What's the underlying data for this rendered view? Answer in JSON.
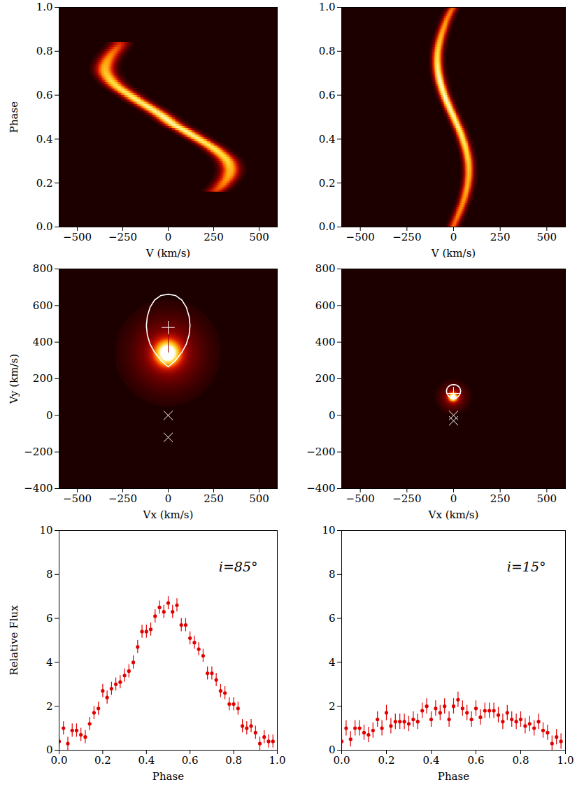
{
  "chart_data": [
    {
      "type": "heatmap",
      "x_label": "V (km/s)",
      "y_label": "Phase",
      "xlim": [
        -600,
        600
      ],
      "xticks": [
        -500,
        -250,
        0,
        250,
        500
      ],
      "ylim": [
        0,
        1
      ],
      "yticks": [
        {
          "value": 0,
          "label": "0.0"
        },
        {
          "value": 0.2,
          "label": "0.2"
        },
        {
          "value": 0.4,
          "label": "0.4"
        },
        {
          "value": 0.6,
          "label": "0.6"
        },
        {
          "value": 0.8,
          "label": "0.8"
        },
        {
          "value": 1,
          "label": "1.0"
        }
      ],
      "track": {
        "width": 35,
        "phase": [
          0.16,
          0.18,
          0.2,
          0.22,
          0.24,
          0.26,
          0.28,
          0.3,
          0.32,
          0.34,
          0.36,
          0.38,
          0.4,
          0.42,
          0.44,
          0.46,
          0.48,
          0.5,
          0.52,
          0.54,
          0.56,
          0.58,
          0.6,
          0.62,
          0.64,
          0.66,
          0.68,
          0.7,
          0.72,
          0.74,
          0.76,
          0.78,
          0.8,
          0.82,
          0.84
        ],
        "velocity": [
          260,
          290,
          310,
          330,
          340,
          345,
          340,
          330,
          310,
          280,
          250,
          210,
          170,
          130,
          90,
          45,
          10,
          -20,
          -55,
          -95,
          -135,
          -175,
          -210,
          -245,
          -280,
          -305,
          -325,
          -340,
          -345,
          -340,
          -330,
          -315,
          -295,
          -275,
          -260
        ],
        "intensity": [
          0.45,
          0.55,
          0.6,
          0.65,
          0.7,
          0.72,
          0.75,
          0.78,
          0.8,
          0.82,
          0.85,
          0.85,
          0.88,
          0.9,
          0.9,
          0.92,
          0.92,
          0.92,
          0.9,
          0.9,
          0.88,
          0.88,
          0.85,
          0.85,
          0.82,
          0.8,
          0.78,
          0.75,
          0.72,
          0.7,
          0.65,
          0.6,
          0.55,
          0.5,
          0.4
        ]
      }
    },
    {
      "type": "heatmap",
      "x_label": "V (km/s)",
      "xlim": [
        -600,
        600
      ],
      "xticks": [
        -500,
        -250,
        0,
        250,
        500
      ],
      "ylim": [
        0,
        1
      ],
      "yticks": [
        {
          "value": 0,
          "label": "0.0"
        },
        {
          "value": 0.2,
          "label": "0.2"
        },
        {
          "value": 0.4,
          "label": "0.4"
        },
        {
          "value": 0.6,
          "label": "0.6"
        },
        {
          "value": 0.8,
          "label": "0.8"
        },
        {
          "value": 1,
          "label": "1.0"
        }
      ],
      "track": {
        "width": 18,
        "phase": [
          0,
          0.02,
          0.04,
          0.06,
          0.08,
          0.1,
          0.12,
          0.14,
          0.16,
          0.18,
          0.2,
          0.22,
          0.24,
          0.26,
          0.28,
          0.3,
          0.32,
          0.34,
          0.36,
          0.38,
          0.4,
          0.42,
          0.44,
          0.46,
          0.48,
          0.5,
          0.52,
          0.54,
          0.56,
          0.58,
          0.6,
          0.62,
          0.64,
          0.66,
          0.68,
          0.7,
          0.72,
          0.74,
          0.76,
          0.78,
          0.8,
          0.82,
          0.84,
          0.86,
          0.88,
          0.9,
          0.92,
          0.94,
          0.96,
          0.98,
          1.0
        ],
        "velocity": [
          0,
          11,
          21,
          31,
          40,
          49,
          57,
          64,
          70,
          76,
          80,
          83,
          85,
          85,
          84,
          82,
          78,
          73,
          67,
          60,
          52,
          44,
          35,
          25,
          14,
          4,
          -7,
          -18,
          -28,
          -38,
          -47,
          -55,
          -62,
          -69,
          -74,
          -79,
          -82,
          -84,
          -85,
          -84,
          -82,
          -78,
          -73,
          -67,
          -60,
          -52,
          -44,
          -35,
          -25,
          -14,
          0
        ],
        "intensity": [
          0.55,
          0.55,
          0.58,
          0.6,
          0.62,
          0.62,
          0.65,
          0.65,
          0.68,
          0.7,
          0.7,
          0.72,
          0.72,
          0.75,
          0.75,
          0.78,
          0.8,
          0.8,
          0.82,
          0.85,
          0.85,
          0.88,
          0.88,
          0.9,
          0.9,
          0.92,
          0.92,
          0.95,
          0.95,
          0.95,
          0.95,
          0.95,
          0.95,
          0.95,
          0.95,
          0.92,
          0.9,
          0.88,
          0.85,
          0.82,
          0.8,
          0.78,
          0.75,
          0.72,
          0.7,
          0.68,
          0.65,
          0.62,
          0.6,
          0.58,
          0.55
        ]
      }
    },
    {
      "type": "doppler",
      "x_label": "Vx (km/s)",
      "y_label": "Vy (km/s)",
      "xlim": [
        -600,
        600
      ],
      "xticks": [
        -500,
        -250,
        0,
        250,
        500
      ],
      "ylim": [
        -400,
        800
      ],
      "yticks": [
        -400,
        -200,
        0,
        200,
        400,
        600,
        800
      ],
      "spot": {
        "vx": 0,
        "vy": 340,
        "width": 45
      },
      "lobe": {
        "vx": [
          0,
          40,
          75,
          100,
          115,
          120,
          115,
          100,
          75,
          40,
          0,
          -40,
          -75,
          -100,
          -115,
          -120,
          -115,
          -100,
          -75,
          -40
        ],
        "vy": [
          265,
          300,
          345,
          390,
          440,
          490,
          540,
          590,
          630,
          655,
          662,
          655,
          630,
          590,
          540,
          490,
          440,
          390,
          345,
          300
        ]
      },
      "stream": {
        "vx": [
          0,
          0
        ],
        "vy": [
          480,
          345
        ]
      },
      "plus": {
        "vx": [
          0
        ],
        "vy": [
          480
        ]
      },
      "crosses": {
        "vx": [
          0,
          0
        ],
        "vy": [
          0,
          -120
        ]
      }
    },
    {
      "type": "doppler",
      "x_label": "Vx (km/s)",
      "xlim": [
        -600,
        600
      ],
      "xticks": [
        -500,
        -250,
        0,
        250,
        500
      ],
      "ylim": [
        -400,
        800
      ],
      "yticks": [
        -400,
        -200,
        0,
        200,
        400,
        600,
        800
      ],
      "spot": {
        "vx": 0,
        "vy": 100,
        "width": 15
      },
      "lobe": {
        "vx": [
          0,
          15,
          28,
          36,
          38,
          35,
          27,
          14,
          0,
          -14,
          -27,
          -35,
          -38,
          -36,
          -28,
          -15
        ],
        "vy": [
          88,
          95,
          107,
          120,
          133,
          147,
          158,
          166,
          168,
          166,
          158,
          147,
          133,
          120,
          107,
          95
        ]
      },
      "plus": {
        "vx": [
          0
        ],
        "vy": [
          120
        ]
      },
      "crosses": {
        "vx": [
          0,
          0
        ],
        "vy": [
          0,
          -30
        ]
      }
    },
    {
      "type": "scatter",
      "x_label": "Phase",
      "y_label": "Relative Flux",
      "annotation": "i=85°",
      "color": "#e00000",
      "xlim": [
        0,
        1
      ],
      "xticks": [
        {
          "value": 0,
          "label": "0.0"
        },
        {
          "value": 0.2,
          "label": "0.2"
        },
        {
          "value": 0.4,
          "label": "0.4"
        },
        {
          "value": 0.6,
          "label": "0.6"
        },
        {
          "value": 0.8,
          "label": "0.8"
        },
        {
          "value": 1,
          "label": "1.0"
        }
      ],
      "ylim": [
        0,
        10
      ],
      "yticks": [
        0,
        2,
        4,
        6,
        8,
        10
      ],
      "x": [
        0,
        0.02,
        0.04,
        0.06,
        0.08,
        0.1,
        0.12,
        0.14,
        0.16,
        0.18,
        0.2,
        0.22,
        0.24,
        0.26,
        0.28,
        0.3,
        0.32,
        0.34,
        0.36,
        0.38,
        0.4,
        0.42,
        0.44,
        0.46,
        0.48,
        0.5,
        0.52,
        0.54,
        0.56,
        0.58,
        0.6,
        0.62,
        0.64,
        0.66,
        0.68,
        0.7,
        0.72,
        0.74,
        0.76,
        0.78,
        0.8,
        0.82,
        0.84,
        0.86,
        0.88,
        0.9,
        0.92,
        0.94,
        0.96,
        0.98
      ],
      "values": [
        0.4,
        1.0,
        0.3,
        0.9,
        0.9,
        0.7,
        0.6,
        1.2,
        1.7,
        1.9,
        2.7,
        2.4,
        2.8,
        3.0,
        3.1,
        3.4,
        3.6,
        4.0,
        4.7,
        5.4,
        5.4,
        5.5,
        6.1,
        6.5,
        6.3,
        6.7,
        6.3,
        6.6,
        5.7,
        5.7,
        5.1,
        4.9,
        4.6,
        4.3,
        3.5,
        3.5,
        3.2,
        2.7,
        2.6,
        2.1,
        2.1,
        1.9,
        1.1,
        1.0,
        1.1,
        0.8,
        0.3,
        0.6,
        0.4,
        0.4
      ],
      "errors": [
        0.3,
        0.3,
        0.3,
        0.3,
        0.3,
        0.3,
        0.3,
        0.3,
        0.3,
        0.3,
        0.3,
        0.3,
        0.3,
        0.3,
        0.3,
        0.3,
        0.3,
        0.3,
        0.3,
        0.3,
        0.3,
        0.3,
        0.3,
        0.3,
        0.3,
        0.3,
        0.3,
        0.3,
        0.3,
        0.3,
        0.3,
        0.3,
        0.3,
        0.3,
        0.3,
        0.3,
        0.3,
        0.3,
        0.3,
        0.3,
        0.3,
        0.3,
        0.3,
        0.3,
        0.3,
        0.3,
        0.3,
        0.3,
        0.3,
        0.3
      ]
    },
    {
      "type": "scatter",
      "x_label": "Phase",
      "annotation": "i=15°",
      "color": "#e00000",
      "xlim": [
        0,
        1
      ],
      "xticks": [
        {
          "value": 0,
          "label": "0.0"
        },
        {
          "value": 0.2,
          "label": "0.2"
        },
        {
          "value": 0.4,
          "label": "0.4"
        },
        {
          "value": 0.6,
          "label": "0.6"
        },
        {
          "value": 0.8,
          "label": "0.8"
        },
        {
          "value": 1,
          "label": "1.0"
        }
      ],
      "ylim": [
        0,
        10
      ],
      "yticks": [
        0,
        2,
        4,
        6,
        8,
        10
      ],
      "x": [
        0,
        0.02,
        0.04,
        0.06,
        0.08,
        0.1,
        0.12,
        0.14,
        0.16,
        0.18,
        0.2,
        0.22,
        0.24,
        0.26,
        0.28,
        0.3,
        0.32,
        0.34,
        0.36,
        0.38,
        0.4,
        0.42,
        0.44,
        0.46,
        0.48,
        0.5,
        0.52,
        0.54,
        0.56,
        0.58,
        0.6,
        0.62,
        0.64,
        0.66,
        0.68,
        0.7,
        0.72,
        0.74,
        0.76,
        0.78,
        0.8,
        0.82,
        0.84,
        0.86,
        0.88,
        0.9,
        0.92,
        0.94,
        0.96,
        0.98
      ],
      "values": [
        0.4,
        1.0,
        0.5,
        1.0,
        1.0,
        0.8,
        0.7,
        0.9,
        1.4,
        1.0,
        1.7,
        1.1,
        1.3,
        1.3,
        1.3,
        1.2,
        1.4,
        1.3,
        1.8,
        2.0,
        1.4,
        1.9,
        1.7,
        2.0,
        1.4,
        2.0,
        2.3,
        1.9,
        1.7,
        1.4,
        1.9,
        1.5,
        1.8,
        1.8,
        1.8,
        1.6,
        1.3,
        1.7,
        1.4,
        1.3,
        1.4,
        1.1,
        1.2,
        1.0,
        1.3,
        0.9,
        0.8,
        0.3,
        0.6,
        0.4
      ],
      "errors": [
        0.35,
        0.35,
        0.35,
        0.35,
        0.35,
        0.35,
        0.35,
        0.35,
        0.35,
        0.35,
        0.35,
        0.35,
        0.35,
        0.35,
        0.35,
        0.35,
        0.35,
        0.35,
        0.35,
        0.35,
        0.35,
        0.35,
        0.35,
        0.35,
        0.35,
        0.35,
        0.35,
        0.35,
        0.35,
        0.35,
        0.35,
        0.35,
        0.35,
        0.35,
        0.35,
        0.35,
        0.35,
        0.35,
        0.35,
        0.35,
        0.35,
        0.35,
        0.35,
        0.35,
        0.35,
        0.35,
        0.35,
        0.35,
        0.35,
        0.35
      ]
    }
  ]
}
